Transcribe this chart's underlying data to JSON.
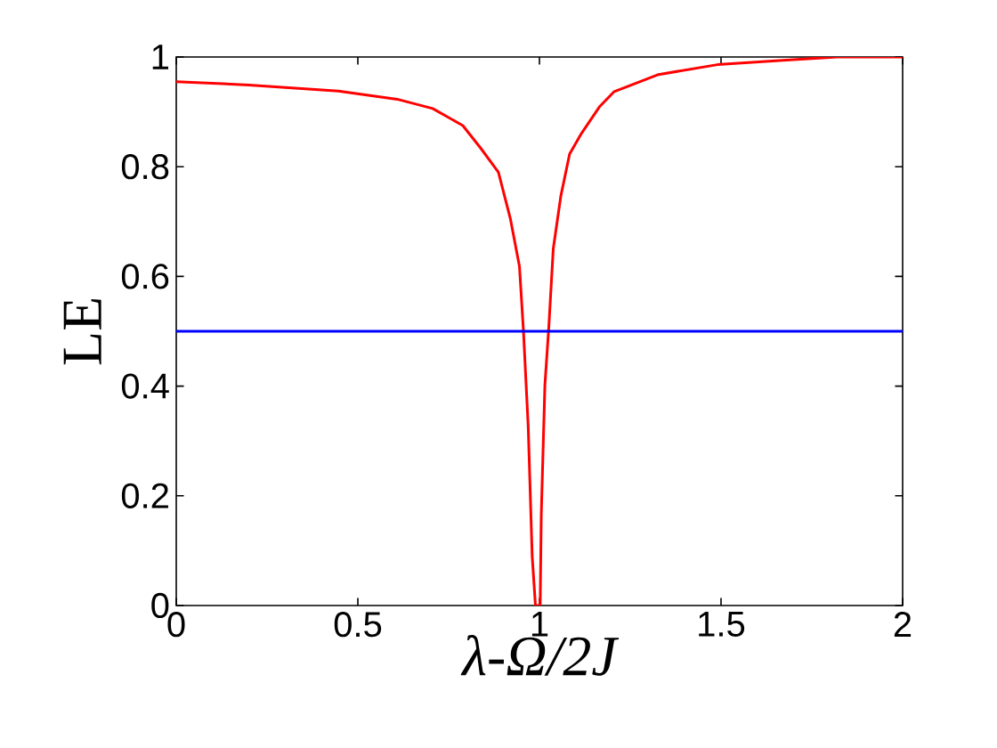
{
  "chart_data": {
    "type": "line",
    "xlabel": "λ-Ω/2J",
    "ylabel": "LE",
    "x": [
      0,
      0.2,
      0.446,
      0.608,
      0.706,
      0.789,
      0.838,
      0.887,
      0.92,
      0.945,
      0.956,
      0.969,
      0.98,
      0.989,
      1.002,
      1.005,
      1.015,
      1.026,
      1.038,
      1.059,
      1.083,
      1.116,
      1.165,
      1.206,
      1.328,
      1.49,
      1.67,
      1.82,
      2
    ],
    "series": [
      {
        "color": "#ff0000",
        "values": [
          0.955,
          0.949,
          0.938,
          0.923,
          0.906,
          0.875,
          0.834,
          0.79,
          0.705,
          0.618,
          0.5,
          0.327,
          0.09,
          0,
          0,
          0.165,
          0.402,
          0.51,
          0.65,
          0.747,
          0.823,
          0.861,
          0.909,
          0.937,
          0.968,
          0.986,
          0.994,
          1.0,
          1.0
        ]
      }
    ],
    "ref_lines": [
      {
        "axis": "y",
        "value": 0.5,
        "color": "#0000ff"
      }
    ],
    "xlim": [
      0,
      2
    ],
    "ylim": [
      0,
      1
    ],
    "xticks": [
      0,
      0.5,
      1,
      1.5,
      2
    ],
    "yticks": [
      0,
      0.2,
      0.4,
      0.6,
      0.8,
      1
    ],
    "grid": false
  }
}
